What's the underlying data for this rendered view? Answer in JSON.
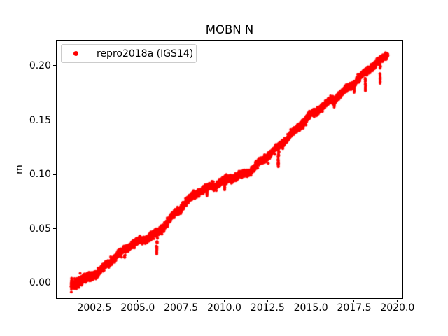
{
  "figure": {
    "background": "#ffffff",
    "text_color": "#000000",
    "spine_color": "#000000"
  },
  "legend": {
    "position": "upper left",
    "border_color": "#cccccc",
    "background": "rgba(255,255,255,0.8)",
    "entries": [
      {
        "label": "repro2018a (IGS14)",
        "marker": "red-dot",
        "color": "#ff0000"
      }
    ]
  },
  "chart_data": {
    "type": "scatter",
    "title": "MOBN N",
    "xlabel": "",
    "ylabel": "m",
    "grid": false,
    "legend_position": "upper left",
    "xlim": [
      2000.28,
      2020.33
    ],
    "ylim": [
      -0.015,
      0.2235
    ],
    "xticks": [
      {
        "v": 2002.5,
        "label": "2002.5"
      },
      {
        "v": 2005.0,
        "label": "2005.0"
      },
      {
        "v": 2007.5,
        "label": "2007.5"
      },
      {
        "v": 2010.0,
        "label": "2010.0"
      },
      {
        "v": 2012.5,
        "label": "2012.5"
      },
      {
        "v": 2015.0,
        "label": "2015.0"
      },
      {
        "v": 2017.5,
        "label": "2017.5"
      },
      {
        "v": 2020.0,
        "label": "2020.0"
      }
    ],
    "yticks": [
      {
        "v": 0.0,
        "label": "0.00"
      },
      {
        "v": 0.05,
        "label": "0.05"
      },
      {
        "v": 0.1,
        "label": "0.10"
      },
      {
        "v": 0.15,
        "label": "0.15"
      },
      {
        "v": 0.2,
        "label": "0.20"
      }
    ],
    "seed": 42,
    "series": [
      {
        "name": "repro2018a (IGS14)",
        "color": "#ff0000",
        "marker": "point",
        "marker_radius_px": 2,
        "t_start": 2001.15,
        "t_end": 2019.45,
        "samples_per_year": 365,
        "trend_controls": [
          [
            2001.15,
            -0.002
          ],
          [
            2002.0,
            0.005
          ],
          [
            2002.7,
            0.01
          ],
          [
            2004.5,
            0.033
          ],
          [
            2006.2,
            0.048
          ],
          [
            2008.4,
            0.083
          ],
          [
            2010.0,
            0.095
          ],
          [
            2011.4,
            0.101
          ],
          [
            2013.1,
            0.126
          ],
          [
            2015.0,
            0.154
          ],
          [
            2016.5,
            0.172
          ],
          [
            2018.2,
            0.194
          ],
          [
            2019.45,
            0.21
          ]
        ],
        "seasonal": [
          {
            "amp": 0.0011,
            "period": 1.0,
            "phase": 0.25
          },
          {
            "amp": 0.0009,
            "period": 3.7,
            "phase": 0.6
          }
        ],
        "noise_sigma": 0.0014,
        "noise_start_boost": 0.6,
        "anomalies": [
          {
            "t": 2002.0,
            "depth": 0.005,
            "span": 0.08
          },
          {
            "t": 2004.25,
            "depth": 0.006,
            "span": 0.08
          },
          {
            "t": 2006.1,
            "depth": 0.021,
            "span": 0.12
          },
          {
            "t": 2009.0,
            "depth": 0.006,
            "span": 0.08
          },
          {
            "t": 2010.02,
            "depth": 0.01,
            "span": 0.07
          },
          {
            "t": 2012.4,
            "depth": 0.007,
            "span": 0.08
          },
          {
            "t": 2013.12,
            "depth": 0.019,
            "span": 0.12
          },
          {
            "t": 2016.35,
            "depth": 0.008,
            "span": 0.07
          },
          {
            "t": 2017.5,
            "depth": 0.009,
            "span": 0.06
          },
          {
            "t": 2018.15,
            "depth": 0.016,
            "span": 0.08
          },
          {
            "t": 2019.0,
            "depth": 0.021,
            "span": 0.06
          }
        ]
      }
    ]
  }
}
